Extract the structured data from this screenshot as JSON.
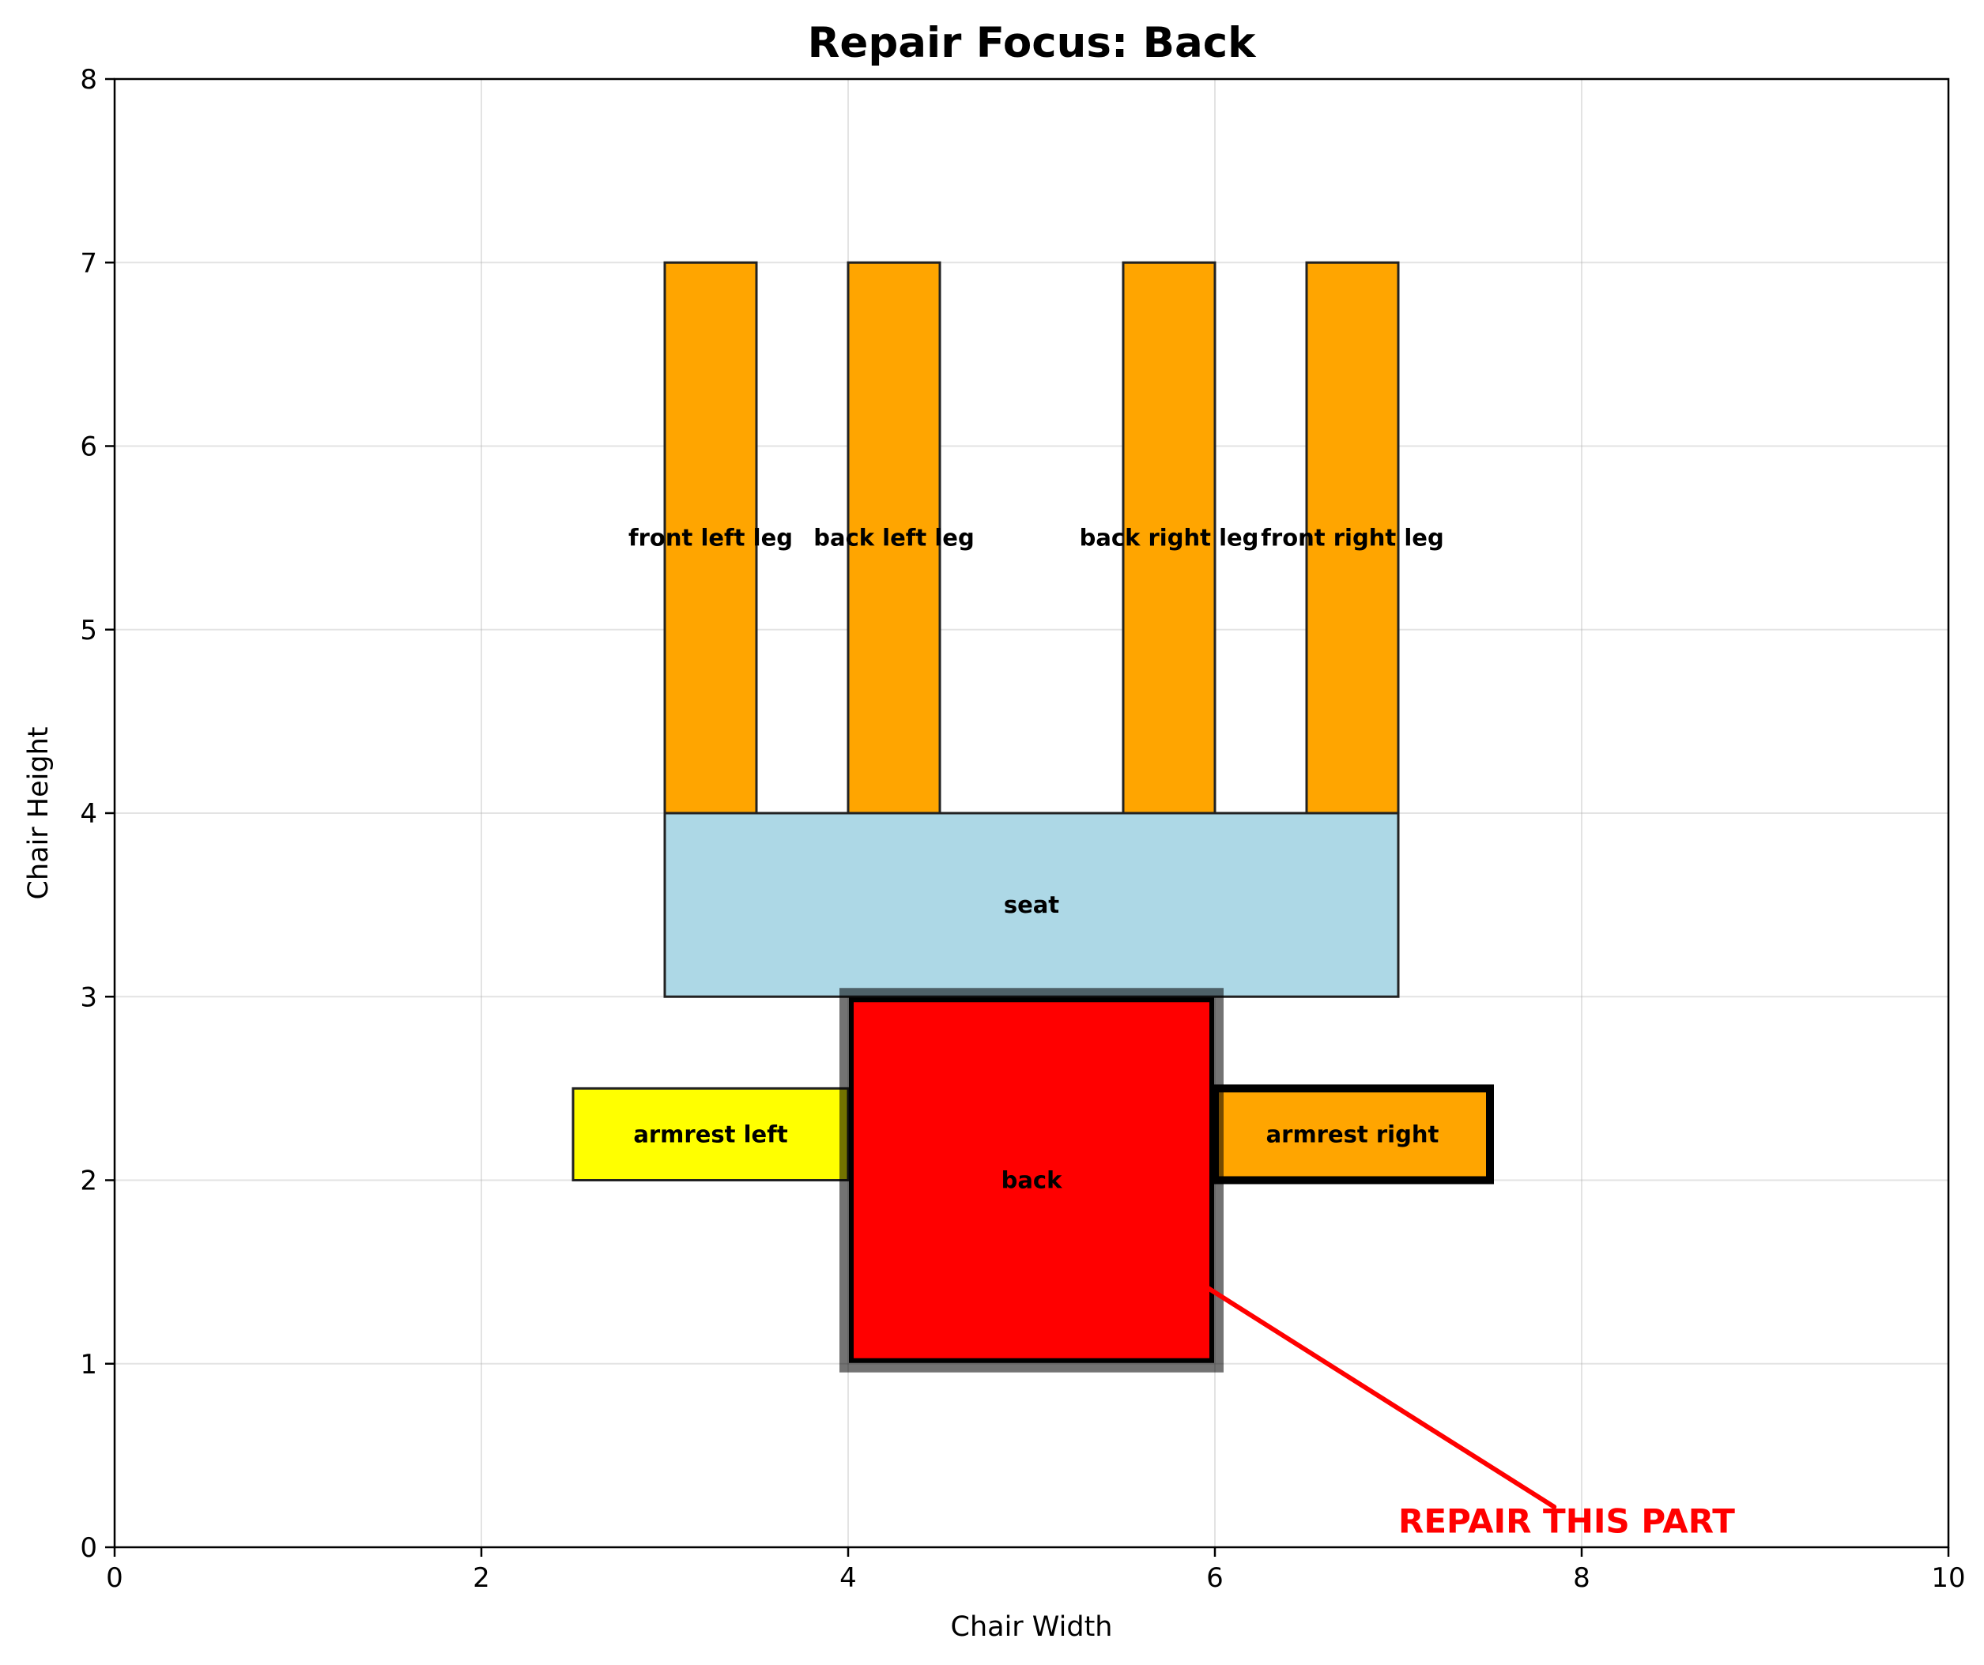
{
  "title": "Repair Focus: Back",
  "xlabel": "Chair Width",
  "ylabel": "Chair Height",
  "xlim": [
    0,
    10
  ],
  "ylim": [
    0,
    8
  ],
  "xticks": [
    "0",
    "2",
    "4",
    "6",
    "8",
    "10"
  ],
  "yticks": [
    "0",
    "1",
    "2",
    "3",
    "4",
    "5",
    "6",
    "7",
    "8"
  ],
  "grid": true,
  "parts": [
    {
      "name": "front left leg",
      "label": "front left leg",
      "x": 3,
      "y": 4,
      "w": 0.5,
      "h": 3,
      "fill": "#ffa500",
      "highlight": false
    },
    {
      "name": "back left leg",
      "label": "back left leg",
      "x": 4,
      "y": 4,
      "w": 0.5,
      "h": 3,
      "fill": "#ffa500",
      "highlight": false
    },
    {
      "name": "back right leg",
      "label": "back right leg",
      "x": 5.5,
      "y": 4,
      "w": 0.5,
      "h": 3,
      "fill": "#ffa500",
      "highlight": false
    },
    {
      "name": "front right leg",
      "label": "front right leg",
      "x": 6.5,
      "y": 4,
      "w": 0.5,
      "h": 3,
      "fill": "#ffa500",
      "highlight": false
    },
    {
      "name": "seat",
      "label": "seat",
      "x": 3,
      "y": 3,
      "w": 4,
      "h": 1,
      "fill": "#add8e6",
      "highlight": false
    },
    {
      "name": "armrest left",
      "label": "armrest left",
      "x": 2.5,
      "y": 2,
      "w": 1.5,
      "h": 0.5,
      "fill": "#ffff00",
      "highlight": false
    },
    {
      "name": "armrest right",
      "label": "armrest right",
      "x": 6,
      "y": 2,
      "w": 1.5,
      "h": 0.5,
      "fill": "#ffa500",
      "highlight": "edge"
    },
    {
      "name": "back",
      "label": "back",
      "x": 4,
      "y": 1,
      "w": 2,
      "h": 2,
      "fill": "#ff0000",
      "highlight": "focus"
    }
  ],
  "callout": {
    "text": "REPAIR THIS PART",
    "color": "#ff0000",
    "arrow_from": [
      7.85,
      0.22
    ],
    "arrow_to": [
      5.95,
      1.42
    ],
    "text_x": 7,
    "text_y": 0.08
  }
}
